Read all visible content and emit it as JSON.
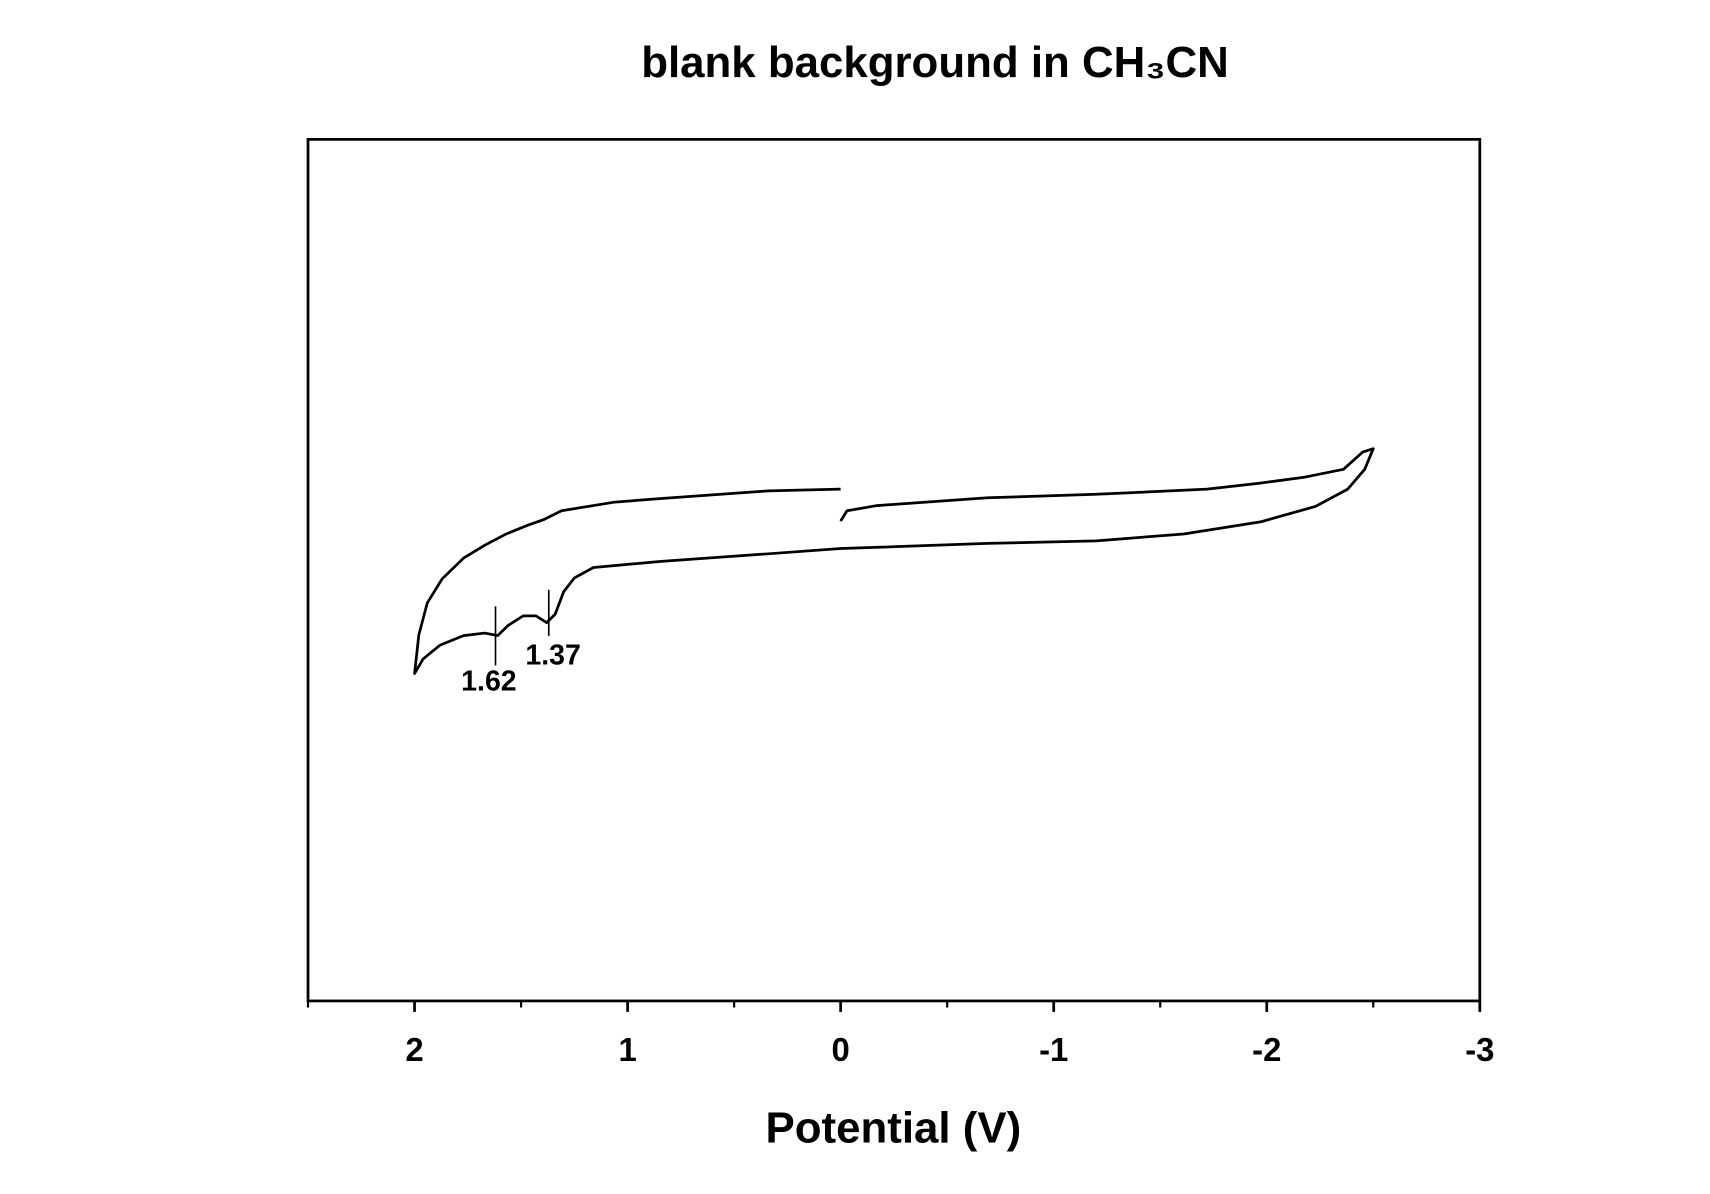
{
  "chart_data": {
    "type": "line",
    "title": "blank background in CH₃CN",
    "xlabel": "Potential (V)",
    "xlim": [
      2.5,
      -3
    ],
    "xticks": [
      2,
      1,
      0,
      -1,
      -2,
      -3
    ],
    "xminorticks": [
      2.5,
      1.5,
      0.5,
      -0.5,
      -1.5,
      -2.5
    ],
    "ylim": [
      0,
      100
    ],
    "series": [
      {
        "color": "#000000",
        "x": [
          0,
          0.34,
          0.85,
          1.06,
          1.31,
          1.39,
          1.47,
          1.57,
          1.67,
          1.77,
          1.87,
          1.94,
          1.98,
          2.0,
          1.96,
          1.88,
          1.77,
          1.67,
          1.61,
          1.56,
          1.49,
          1.43,
          1.38,
          1.34,
          1.3,
          1.25,
          1.16,
          0.85,
          0.34,
          0,
          -0.69,
          -1.2,
          -1.61,
          -1.97,
          -2.23,
          -2.38,
          -2.46,
          -2.5,
          -2.45,
          -2.36,
          -2.18,
          -1.97,
          -1.72,
          -1.2,
          -0.69,
          -0.17,
          -0.03,
          0
        ],
        "values": [
          59.4,
          59.2,
          58.3,
          57.9,
          56.9,
          55.9,
          55.2,
          54.2,
          52.9,
          51.4,
          49.0,
          46.2,
          42.5,
          38.0,
          39.7,
          41.3,
          42.4,
          42.7,
          42.4,
          43.6,
          44.7,
          44.7,
          43.9,
          44.9,
          47.5,
          49.1,
          50.3,
          51.0,
          51.9,
          52.5,
          53.1,
          53.4,
          54.2,
          55.6,
          57.4,
          59.4,
          61.7,
          64.1,
          63.7,
          61.7,
          60.8,
          60.1,
          59.4,
          58.8,
          58.4,
          57.5,
          56.9,
          55.7
        ]
      }
    ],
    "annotations": [
      {
        "x": 1.62
      },
      {
        "x": 1.37
      }
    ]
  }
}
